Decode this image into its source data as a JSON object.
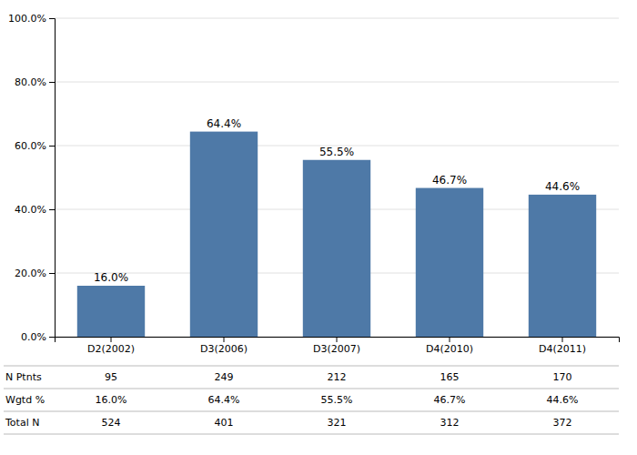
{
  "chart_data": {
    "type": "bar",
    "categories": [
      "D2(2002)",
      "D3(2006)",
      "D3(2007)",
      "D4(2010)",
      "D4(2011)"
    ],
    "values": [
      16.0,
      64.4,
      55.5,
      46.7,
      44.6
    ],
    "value_labels": [
      "16.0%",
      "64.4%",
      "55.5%",
      "46.7%",
      "44.6%"
    ],
    "data_labels": true,
    "ylim": [
      0,
      100
    ],
    "yticks": [
      {
        "value": 0,
        "label": "0.0%"
      },
      {
        "value": 20,
        "label": "20.0%"
      },
      {
        "value": 40,
        "label": "40.0%"
      },
      {
        "value": 60,
        "label": "60.0%"
      },
      {
        "value": 80,
        "label": "80.0%"
      },
      {
        "value": 100,
        "label": "100.0%"
      }
    ],
    "grid": true,
    "table": [
      {
        "label": "N Ptnts",
        "values": [
          95,
          249,
          212,
          165,
          170
        ]
      },
      {
        "label": "Wgtd %",
        "values": [
          16.0,
          64.4,
          55.5,
          46.7,
          44.6
        ],
        "value_labels": [
          "16.0%",
          "64.4%",
          "55.5%",
          "46.7%",
          "44.6%"
        ]
      },
      {
        "label": "Total N",
        "values": [
          524,
          401,
          321,
          312,
          372
        ]
      }
    ]
  }
}
